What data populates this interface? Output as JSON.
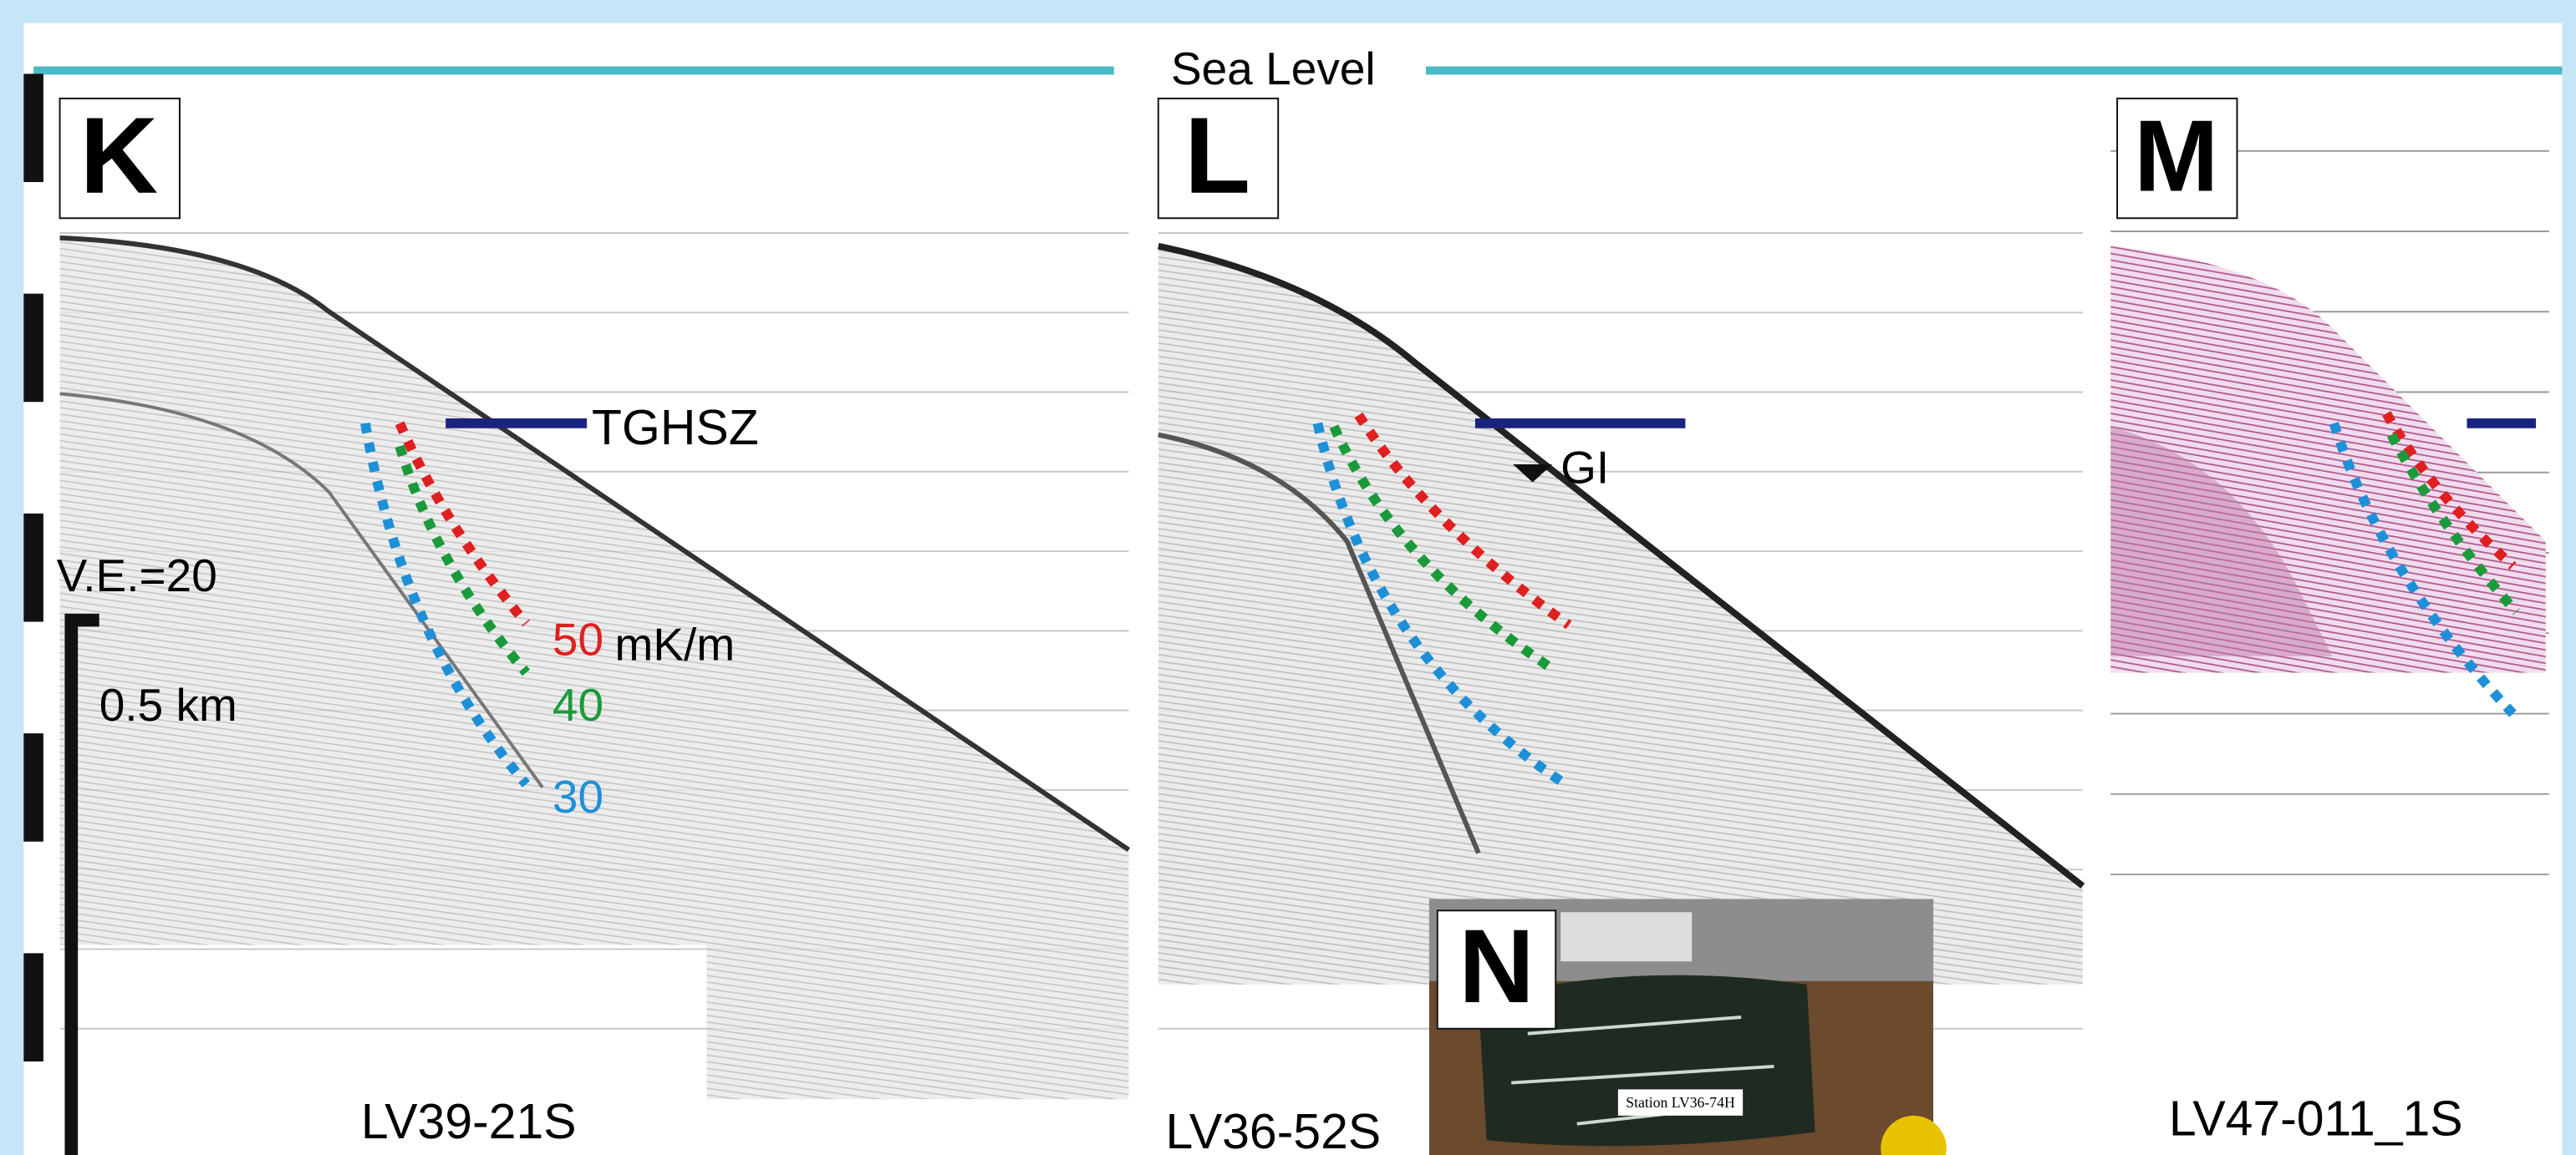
{
  "header": {
    "title": "Sea Level"
  },
  "panels": {
    "K": {
      "label": "K",
      "line_name": "LV39-21S",
      "horizon": "TGHSZ",
      "vertical_exaggeration": "V.E.=20",
      "scale": "0.5 km",
      "gradients": {
        "high": 50,
        "unit": "mK/m",
        "mid": 40,
        "low": 30
      }
    },
    "L": {
      "label": "L",
      "line_name": "LV36-52S",
      "marker": "GI"
    },
    "M": {
      "label": "M",
      "line_name": "LV47-011_1S"
    },
    "N": {
      "label": "N",
      "caption": "Station LV36-74H"
    }
  }
}
